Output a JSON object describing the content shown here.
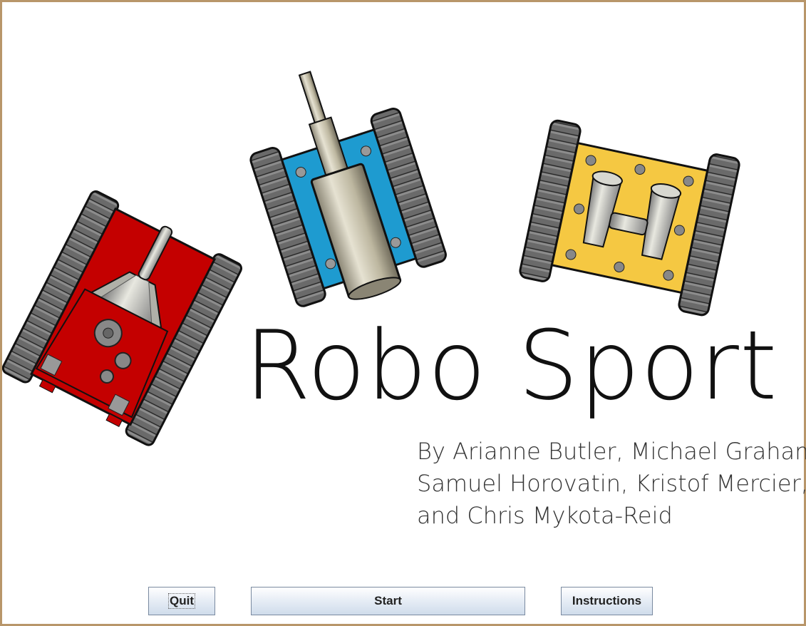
{
  "title": "Robo Sport",
  "credits": {
    "line1": "By Arianne Butler, Michael Graham,",
    "line2": "Samuel Horovatin, Kristof Mercier,",
    "line3": "and Chris Mykota-Reid"
  },
  "buttons": {
    "quit": "Quit",
    "start": "Start",
    "instructions": "Instructions"
  },
  "colors": {
    "frame": "#b8966a",
    "red_robot": "#c00000",
    "blue_robot": "#1e9bd0",
    "yellow_robot": "#f5c842"
  }
}
